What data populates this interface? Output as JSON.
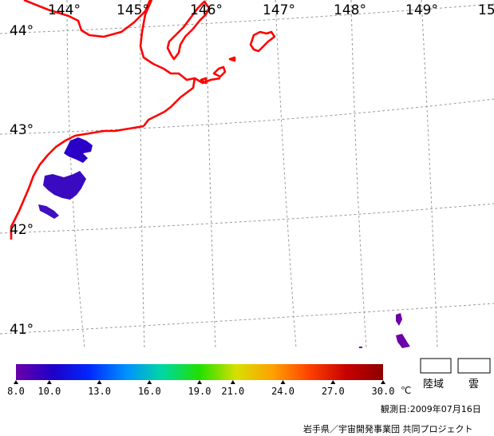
{
  "map": {
    "longitude_labels": [
      "144°",
      "145°",
      "146°",
      "147°",
      "148°",
      "149°",
      "15"
    ],
    "latitude_labels": [
      "44°",
      "43°",
      "42°",
      "41°"
    ],
    "coast_color": "#ff0000",
    "grid_color": "#9a9a9a"
  },
  "colorbar": {
    "ticks": [
      "8.0",
      "10.0",
      "13.0",
      "16.0",
      "19.0",
      "21.0",
      "24.0",
      "27.0",
      "30.0"
    ],
    "unit": "℃",
    "colors": [
      "#6a00a8",
      "#1f00c8",
      "#0028ff",
      "#0090ff",
      "#00d8a0",
      "#20e000",
      "#d8e000",
      "#ffa000",
      "#ff4000",
      "#c80000",
      "#8c0000"
    ]
  },
  "legend": {
    "land_label": "陸域",
    "cloud_label": "雲"
  },
  "footer": {
    "observation_date": "観測日:2009年07月16日",
    "credit": "岩手県／宇宙開発事業団  共同プロジェクト"
  }
}
